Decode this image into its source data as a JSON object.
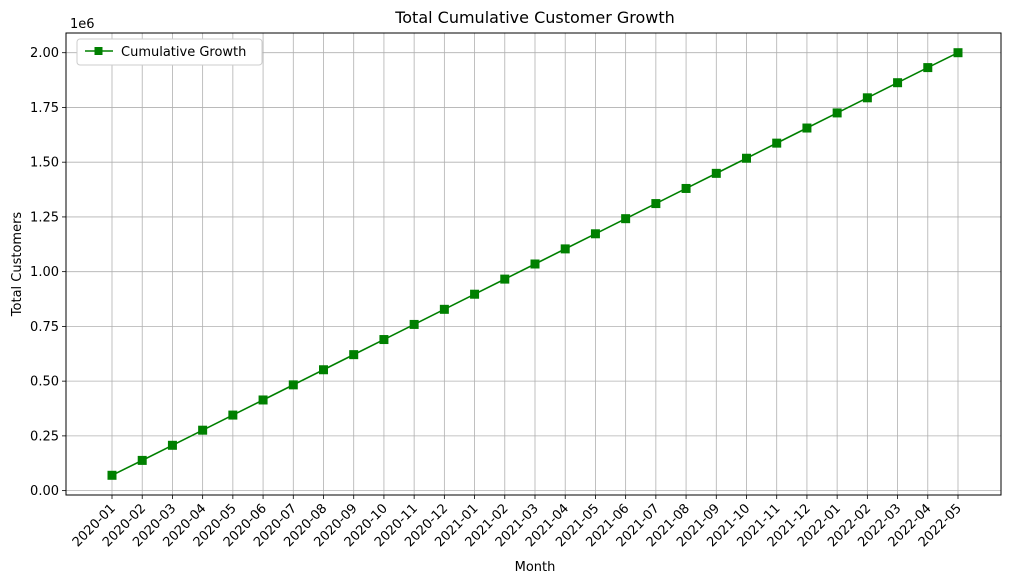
{
  "chart_data": {
    "type": "line",
    "title": "Total Cumulative Customer Growth",
    "xlabel": "Month",
    "ylabel": "Total Customers",
    "y_offset_label": "1e6",
    "y_scale": 1000000,
    "ylim": [
      -0.02,
      2.09
    ],
    "yticks": [
      "0.00",
      "0.25",
      "0.50",
      "0.75",
      "1.00",
      "1.25",
      "1.50",
      "1.75",
      "2.00"
    ],
    "grid": true,
    "legend": {
      "position": "top-left"
    },
    "categories": [
      "2020-01",
      "2020-02",
      "2020-03",
      "2020-04",
      "2020-05",
      "2020-06",
      "2020-07",
      "2020-08",
      "2020-09",
      "2020-10",
      "2020-11",
      "2020-12",
      "2021-01",
      "2021-02",
      "2021-03",
      "2021-04",
      "2021-05",
      "2021-06",
      "2021-07",
      "2021-08",
      "2021-09",
      "2021-10",
      "2021-11",
      "2021-12",
      "2022-01",
      "2022-02",
      "2022-03",
      "2022-04",
      "2022-05"
    ],
    "series": [
      {
        "name": "Cumulative Growth",
        "color": "#008000",
        "marker": "square",
        "values": [
          70000,
          138000,
          207000,
          276000,
          345000,
          414000,
          483000,
          552000,
          621000,
          690000,
          759000,
          828000,
          897000,
          966000,
          1035000,
          1104000,
          1173000,
          1242000,
          1311000,
          1380000,
          1449000,
          1518000,
          1587000,
          1656000,
          1725000,
          1794000,
          1863000,
          1932000,
          2000000
        ]
      }
    ]
  }
}
